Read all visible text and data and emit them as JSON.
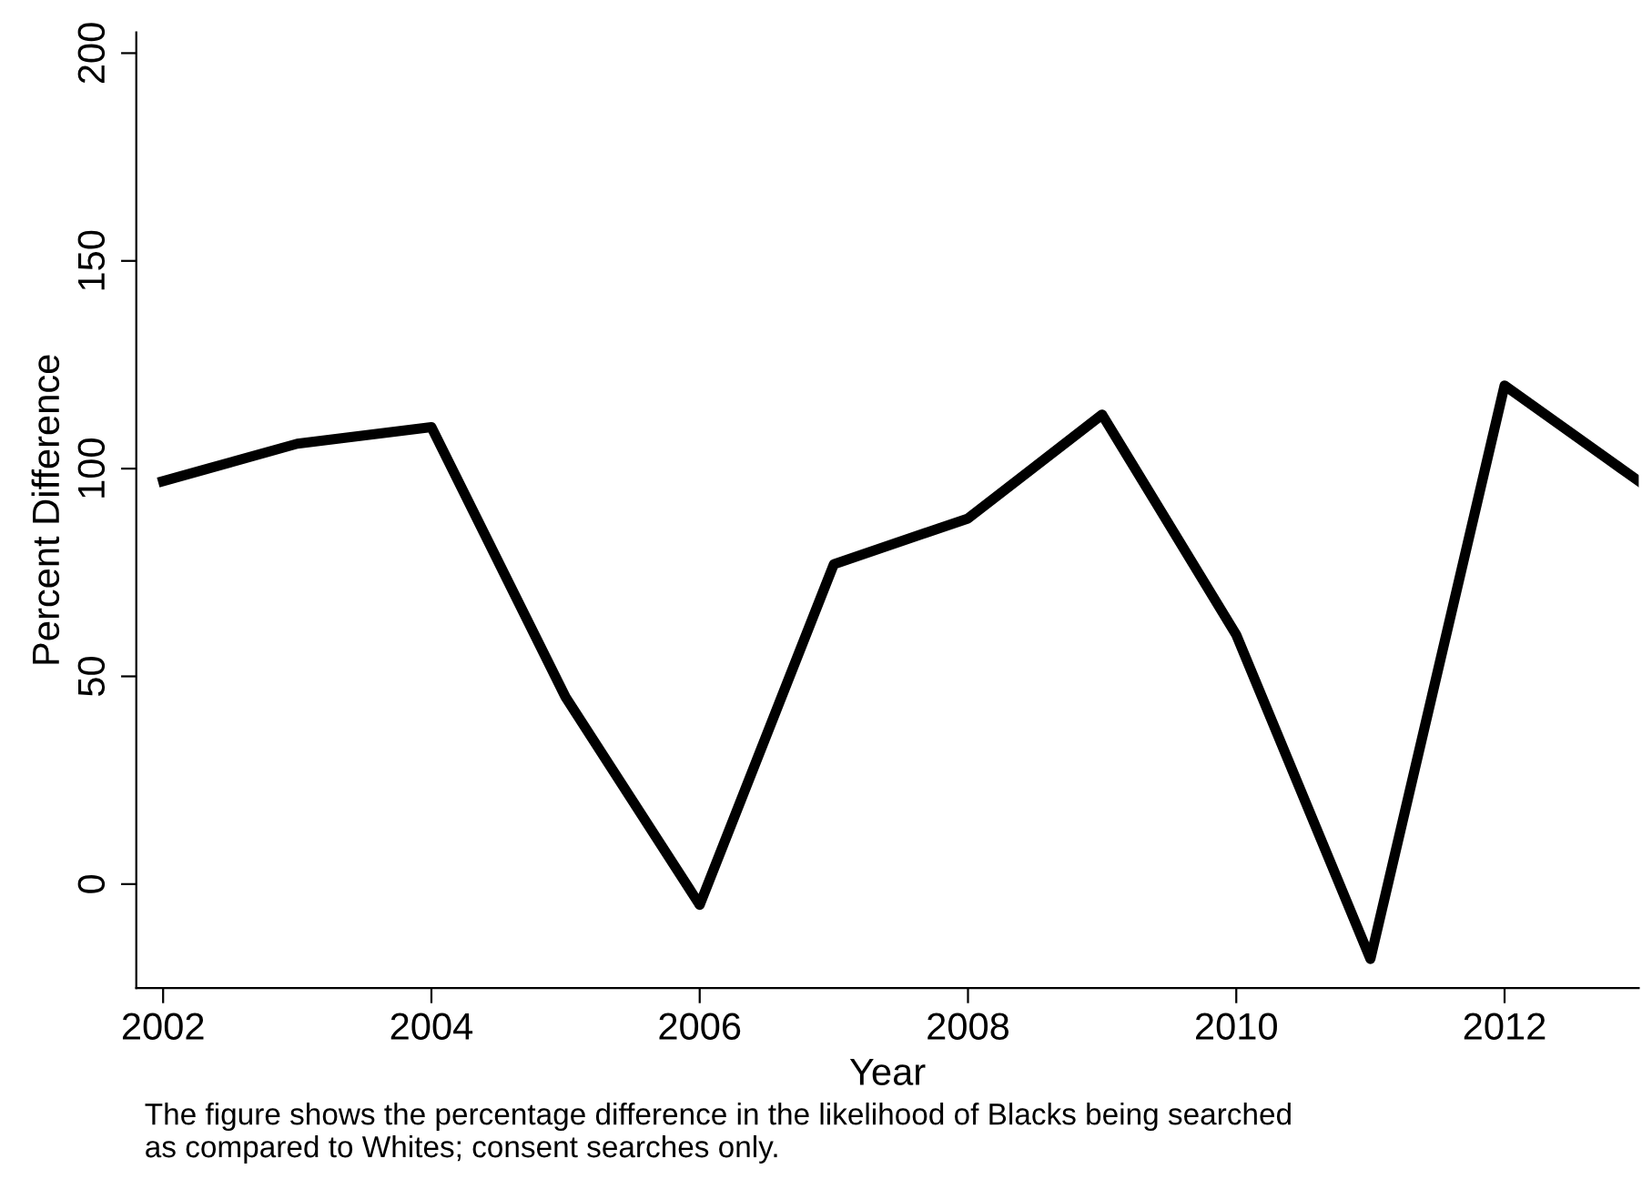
{
  "chart_data": {
    "type": "line",
    "xlabel": "Year",
    "ylabel": "Percent Difference",
    "x": [
      2002,
      2003,
      2004,
      2005,
      2006,
      2007,
      2008,
      2009,
      2010,
      2011,
      2012,
      2013
    ],
    "series": [
      {
        "color": "#000000",
        "values": [
          97,
          106,
          110,
          45,
          -5,
          77,
          88,
          113,
          60,
          -18,
          120,
          97
        ]
      }
    ],
    "xlim": [
      2001.8,
      2013
    ],
    "xticks": [
      2002,
      2004,
      2006,
      2008,
      2010,
      2012
    ],
    "ylim": [
      -25,
      205
    ],
    "yticks": [
      0,
      50,
      100,
      150,
      200
    ],
    "grid": false,
    "legend": false,
    "marker": "none",
    "line_style": "solid",
    "annotations": [
      "The figure shows the percentage difference in the likelihood of Blacks being searched\nas compared to Whites; consent searches only."
    ]
  }
}
